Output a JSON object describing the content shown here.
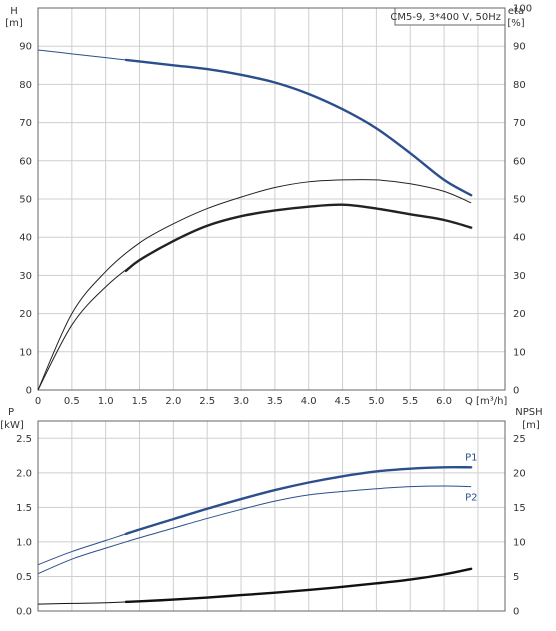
{
  "chart_data": [
    {
      "type": "line",
      "title": "CM5-9, 3*400 V, 50Hz",
      "xlabel": "Q [m³/h]",
      "x_ticks": [
        "0",
        "0.5",
        "1.0",
        "1.5",
        "2.0",
        "2.5",
        "3.0",
        "3.5",
        "4.0",
        "4.5",
        "5.0",
        "5.5",
        "6.0"
      ],
      "xlim": [
        0,
        6.9
      ],
      "ylabel": "H",
      "ylabel_unit": "[m]",
      "ylim": [
        0,
        100
      ],
      "y_ticks": [
        0,
        10,
        20,
        30,
        40,
        50,
        60,
        70,
        80,
        90
      ],
      "y2label": "eta",
      "y2label_unit": "[%]",
      "y2lim": [
        0,
        100
      ],
      "y2_ticks": [
        0,
        10,
        20,
        30,
        40,
        50,
        60,
        70,
        80,
        90,
        100
      ],
      "grid": true,
      "series": [
        {
          "role": "head",
          "axis": "left",
          "color": "#2b4f8c",
          "x": [
            0,
            0.5,
            1.0,
            1.5,
            2.0,
            2.5,
            3.0,
            3.5,
            4.0,
            4.5,
            5.0,
            5.5,
            6.0,
            6.4
          ],
          "y": [
            89,
            88,
            87,
            86,
            85,
            84,
            82.5,
            80.5,
            77.5,
            73.5,
            68.5,
            62,
            55,
            51
          ],
          "operating_from": 1.3
        },
        {
          "role": "efficiency",
          "axis": "right",
          "color": "#222222",
          "x": [
            0,
            0.5,
            1.0,
            1.5,
            2.0,
            2.5,
            3.0,
            3.5,
            4.0,
            4.5,
            5.0,
            5.5,
            6.0,
            6.4
          ],
          "y": [
            0,
            17,
            27,
            34,
            39,
            43,
            45.5,
            47,
            48,
            48.5,
            47.5,
            46,
            44.5,
            42.5
          ],
          "operating_from": 1.3
        },
        {
          "role": "efficiency-alt",
          "axis": "right",
          "color": "#222222",
          "x": [
            0,
            0.5,
            1.0,
            1.5,
            2.0,
            2.5,
            3.0,
            3.5,
            4.0,
            4.5,
            5.0,
            5.5,
            6.0,
            6.4
          ],
          "y": [
            0,
            20,
            31,
            38.5,
            43.5,
            47.5,
            50.5,
            53,
            54.5,
            55,
            55,
            54,
            52,
            49
          ]
        }
      ]
    },
    {
      "type": "line",
      "xlim": [
        0,
        6.9
      ],
      "ylabel": "P",
      "ylabel_unit": "[kW]",
      "ylim": [
        0,
        2.75
      ],
      "y_ticks": [
        "0.0",
        "0.5",
        "1.0",
        "1.5",
        "2.0",
        "2.5"
      ],
      "y2label": "NPSH",
      "y2label_unit": "[m]",
      "y2lim": [
        0,
        27.5
      ],
      "y2_ticks": [
        "0",
        "5",
        "10",
        "15",
        "20",
        "25"
      ],
      "grid": true,
      "series": [
        {
          "name": "P1",
          "axis": "left",
          "color": "#2b4f8c",
          "x": [
            0,
            0.5,
            1.0,
            1.5,
            2.0,
            2.5,
            3.0,
            3.5,
            4.0,
            4.5,
            5.0,
            5.5,
            6.0,
            6.4
          ],
          "y": [
            0.67,
            0.86,
            1.02,
            1.18,
            1.33,
            1.48,
            1.62,
            1.75,
            1.86,
            1.95,
            2.02,
            2.06,
            2.08,
            2.08
          ],
          "operating_from": 1.3
        },
        {
          "name": "P2",
          "axis": "left",
          "color": "#2b4f8c",
          "x": [
            0,
            0.5,
            1.0,
            1.5,
            2.0,
            2.5,
            3.0,
            3.5,
            4.0,
            4.5,
            5.0,
            5.5,
            6.0,
            6.4
          ],
          "y": [
            0.54,
            0.75,
            0.91,
            1.06,
            1.2,
            1.34,
            1.47,
            1.59,
            1.68,
            1.73,
            1.77,
            1.8,
            1.81,
            1.8
          ]
        },
        {
          "role": "npsh",
          "axis": "right",
          "color": "#111111",
          "x": [
            0,
            0.5,
            1.0,
            1.5,
            2.0,
            2.5,
            3.0,
            3.5,
            4.0,
            4.5,
            5.0,
            5.5,
            6.0,
            6.4
          ],
          "y": [
            1.0,
            1.1,
            1.2,
            1.4,
            1.65,
            1.95,
            2.3,
            2.65,
            3.05,
            3.5,
            4.0,
            4.55,
            5.3,
            6.1
          ],
          "operating_from": 1.3
        }
      ]
    }
  ]
}
